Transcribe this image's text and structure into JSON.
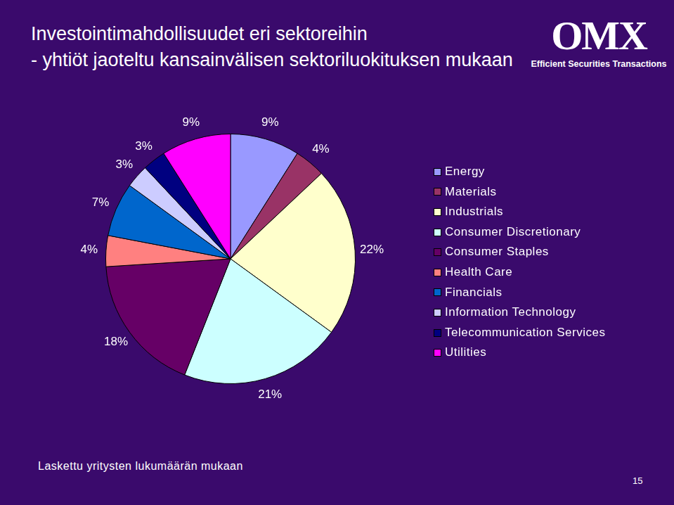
{
  "chart_data": {
    "type": "pie",
    "title": "Investointimahdollisuudet eri sektoreihin",
    "subtitle": "- yhtiöt jaoteltu kansainvälisen sektoriluokituksen mukaan",
    "categories": [
      "Energy",
      "Materials",
      "Industrials",
      "Consumer Discretionary",
      "Consumer Staples",
      "Health Care",
      "Financials",
      "Information Technology",
      "Telecommunication Services",
      "Utilities"
    ],
    "values": [
      9,
      4,
      22,
      21,
      18,
      4,
      7,
      3,
      3,
      9
    ],
    "value_labels": [
      "9%",
      "4%",
      "22%",
      "21%",
      "18%",
      "4%",
      "7%",
      "3%",
      "3%",
      "9%"
    ],
    "colors": [
      "#9999ff",
      "#993366",
      "#ffffcc",
      "#ccffff",
      "#660066",
      "#ff8080",
      "#0066cc",
      "#ccccff",
      "#000080",
      "#ff00ff"
    ],
    "data_labels": true,
    "legend": "right"
  },
  "logo": {
    "name": "OMX",
    "tagline": "Efficient Securities Transactions"
  },
  "footnote": "Laskettu yritysten lukumäärän mukaan",
  "page_number": 15
}
